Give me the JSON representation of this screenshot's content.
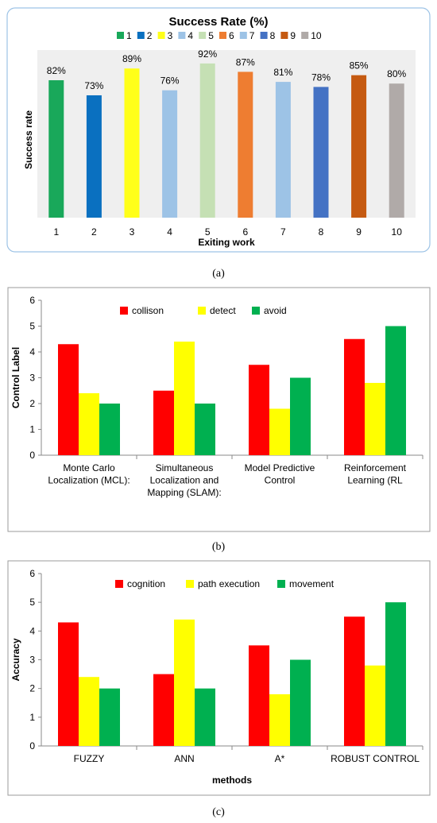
{
  "captions": [
    "(a)",
    "(b)",
    "(c)"
  ],
  "chart_data": [
    {
      "type": "bar",
      "title": "Success Rate (%)",
      "xlabel": "Exiting work",
      "ylabel": "Success rate",
      "categories": [
        "1",
        "2",
        "3",
        "4",
        "5",
        "6",
        "7",
        "8",
        "9",
        "10"
      ],
      "values": [
        82,
        73,
        89,
        76,
        92,
        87,
        81,
        78,
        85,
        80
      ],
      "data_labels": [
        "82%",
        "73%",
        "89%",
        "76%",
        "92%",
        "87%",
        "81%",
        "78%",
        "85%",
        "80%"
      ],
      "legend": [
        "1",
        "2",
        "3",
        "4",
        "5",
        "6",
        "7",
        "8",
        "9",
        "10"
      ],
      "colors": [
        "#19a85a",
        "#0a70c0",
        "#ffff19",
        "#9dc3e6",
        "#c5e0b4",
        "#ee7d31",
        "#9dc3e6",
        "#4472c4",
        "#c55a11",
        "#b0aaa8"
      ],
      "ylim": [
        0,
        100
      ],
      "grid": false,
      "legend_position": "top"
    },
    {
      "type": "bar",
      "xlabel": "",
      "ylabel": "Control Label",
      "categories": [
        "Monte Carlo Localization (MCL):",
        "Simultaneous Localization and Mapping (SLAM):",
        "Model Predictive Control",
        "Reinforcement Learning (RL"
      ],
      "category_lines": [
        [
          "Monte Carlo",
          "Localization (MCL):"
        ],
        [
          "Simultaneous",
          "Localization and",
          "Mapping (SLAM):"
        ],
        [
          "Model Predictive",
          "Control"
        ],
        [
          "Reinforcement",
          "Learning (RL"
        ]
      ],
      "series": [
        {
          "name": "collison",
          "values": [
            4.3,
            2.5,
            3.5,
            4.5
          ],
          "color": "#ff0000"
        },
        {
          "name": "detect",
          "values": [
            2.4,
            4.4,
            1.8,
            2.8
          ],
          "color": "#ffff00"
        },
        {
          "name": "avoid",
          "values": [
            2.0,
            2.0,
            3.0,
            5.0
          ],
          "color": "#00b050"
        }
      ],
      "yticks": [
        "0",
        "1",
        "2",
        "3",
        "4",
        "5",
        "6"
      ],
      "ylim": [
        0,
        6
      ],
      "grid": false,
      "legend_position": "top"
    },
    {
      "type": "bar",
      "xlabel": "methods",
      "ylabel": "Accuracy",
      "categories": [
        "FUZZY",
        "ANN",
        "A*",
        "ROBUST CONTROL"
      ],
      "category_lines": [
        [
          "FUZZY"
        ],
        [
          "ANN"
        ],
        [
          "A*"
        ],
        [
          "ROBUST CONTROL"
        ]
      ],
      "series": [
        {
          "name": "cognition",
          "values": [
            4.3,
            2.5,
            3.5,
            4.5
          ],
          "color": "#ff0000"
        },
        {
          "name": "path execution",
          "values": [
            2.4,
            4.4,
            1.8,
            2.8
          ],
          "color": "#ffff00"
        },
        {
          "name": "movement",
          "values": [
            2.0,
            2.0,
            3.0,
            5.0
          ],
          "color": "#00b050"
        }
      ],
      "yticks": [
        "0",
        "1",
        "2",
        "3",
        "4",
        "5",
        "6"
      ],
      "ylim": [
        0,
        6
      ],
      "grid": false,
      "legend_position": "top"
    }
  ]
}
